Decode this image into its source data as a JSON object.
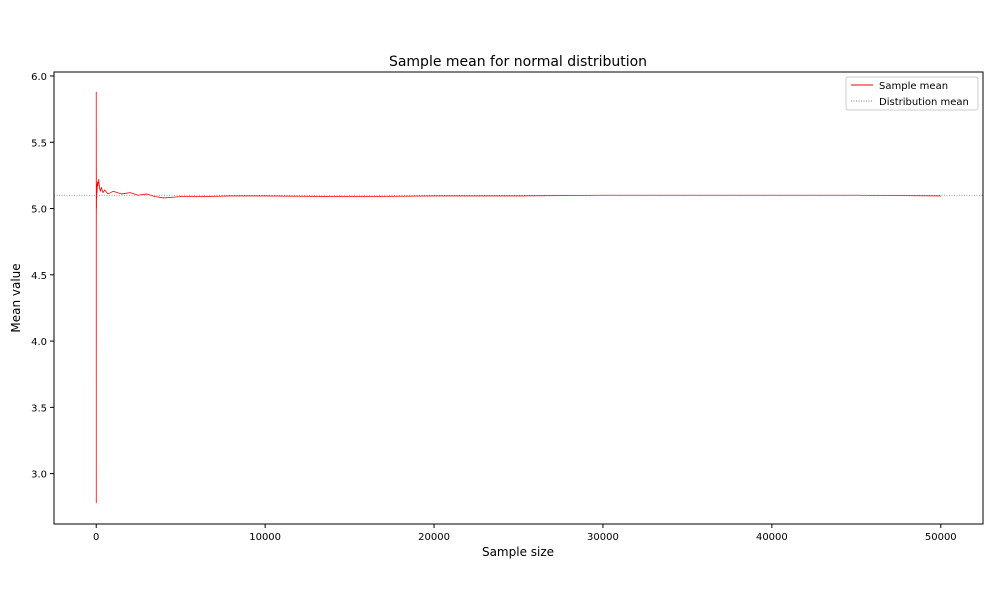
{
  "chart_data": {
    "type": "line",
    "title": "Sample mean for normal distribution",
    "xlabel": "Sample size",
    "ylabel": "Mean value",
    "xlim": [
      -2500,
      52500
    ],
    "ylim": [
      2.62,
      6.03
    ],
    "xticks": [
      0,
      10000,
      20000,
      30000,
      40000,
      50000
    ],
    "xtick_labels": [
      "0",
      "10000",
      "20000",
      "30000",
      "40000",
      "50000"
    ],
    "yticks": [
      3.0,
      3.5,
      4.0,
      4.5,
      5.0,
      5.5,
      6.0
    ],
    "ytick_labels": [
      "3.0",
      "3.5",
      "4.0",
      "4.5",
      "5.0",
      "5.5",
      "6.0"
    ],
    "grid": false,
    "legend_position": "top-right",
    "series": [
      {
        "name": "Sample mean",
        "color": "#ff0000",
        "style": "solid",
        "x": [
          1,
          2,
          3,
          4,
          6,
          8,
          10,
          15,
          20,
          30,
          40,
          50,
          70,
          100,
          150,
          200,
          250,
          300,
          400,
          500,
          700,
          1000,
          1500,
          2000,
          2500,
          3000,
          3500,
          4000,
          5000,
          6000,
          8000,
          10000,
          15000,
          20000,
          25000,
          30000,
          35000,
          40000,
          45000,
          50000
        ],
        "y": [
          5.88,
          2.78,
          5.6,
          4.9,
          5.3,
          5.05,
          5.2,
          5.0,
          5.15,
          5.08,
          5.18,
          5.12,
          5.2,
          5.17,
          5.22,
          5.15,
          5.13,
          5.16,
          5.12,
          5.14,
          5.11,
          5.13,
          5.11,
          5.12,
          5.1,
          5.11,
          5.09,
          5.08,
          5.09,
          5.09,
          5.095,
          5.095,
          5.09,
          5.095,
          5.095,
          5.1,
          5.1,
          5.1,
          5.1,
          5.095
        ]
      },
      {
        "name": "Distribution mean",
        "color": "#808080",
        "style": "dotted",
        "constant": 5.1
      }
    ]
  }
}
